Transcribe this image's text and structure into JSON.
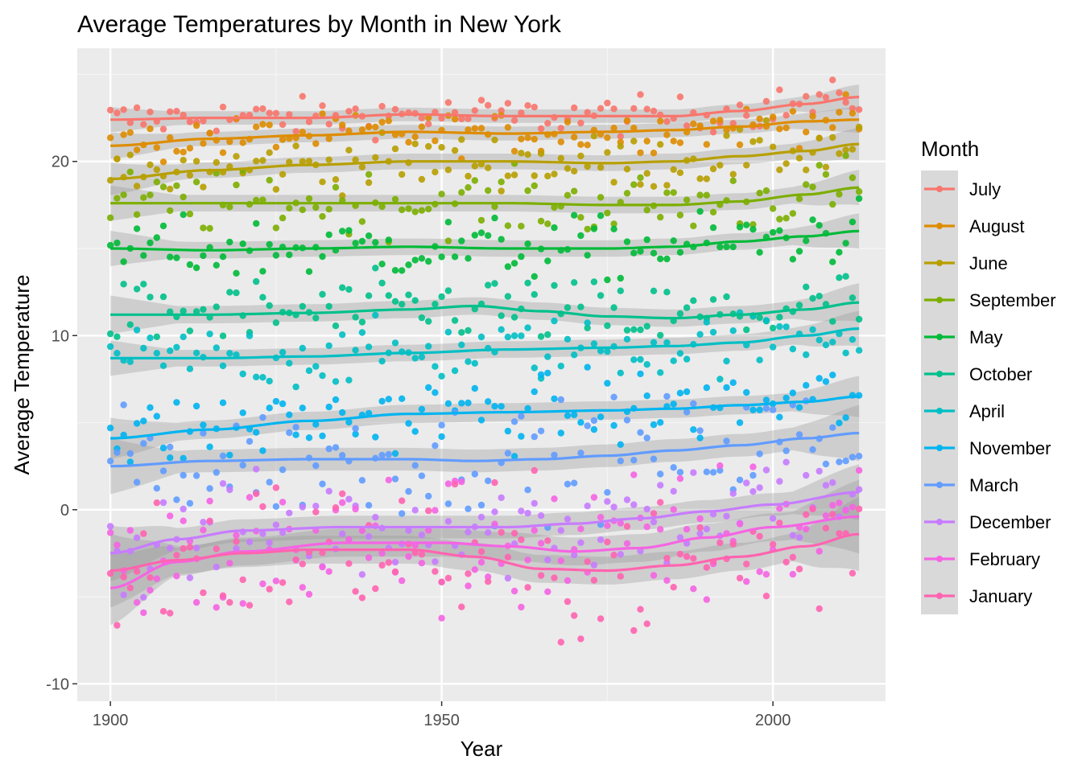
{
  "chart_data": {
    "type": "scatter",
    "title": "Average Temperatures by Month in New York",
    "xlabel": "Year",
    "ylabel": "Average Temperature",
    "xlim": [
      1895,
      2017
    ],
    "ylim": [
      -11,
      26.5
    ],
    "x_ticks": [
      1900,
      1950,
      2000
    ],
    "y_ticks": [
      -10,
      0,
      10,
      20
    ],
    "x_tick_labels": [
      "1900",
      "1950",
      "2000"
    ],
    "y_tick_labels": [
      "-10",
      "0",
      "10",
      "20"
    ],
    "x_range": [
      1900,
      2013
    ],
    "grid": true,
    "smoother": "loess with confidence band",
    "legend": {
      "title": "Month",
      "position": "right"
    },
    "series": [
      {
        "name": "July",
        "color": "#F8766D",
        "spread": 0.55,
        "trend": [
          [
            1900,
            22.4
          ],
          [
            1915,
            22.5
          ],
          [
            1930,
            22.5
          ],
          [
            1945,
            22.7
          ],
          [
            1960,
            22.6
          ],
          [
            1975,
            22.6
          ],
          [
            1985,
            22.6
          ],
          [
            1995,
            22.9
          ],
          [
            2005,
            23.3
          ],
          [
            2013,
            23.7
          ]
        ]
      },
      {
        "name": "August",
        "color": "#DE8C00",
        "spread": 0.6,
        "trend": [
          [
            1900,
            20.9
          ],
          [
            1915,
            21.3
          ],
          [
            1930,
            21.5
          ],
          [
            1945,
            21.7
          ],
          [
            1960,
            21.6
          ],
          [
            1975,
            21.7
          ],
          [
            1985,
            21.8
          ],
          [
            1995,
            22.0
          ],
          [
            2005,
            22.3
          ],
          [
            2013,
            22.4
          ]
        ]
      },
      {
        "name": "June",
        "color": "#B79F00",
        "spread": 0.8,
        "trend": [
          [
            1900,
            19.0
          ],
          [
            1915,
            19.5
          ],
          [
            1930,
            19.8
          ],
          [
            1945,
            20.0
          ],
          [
            1960,
            20.0
          ],
          [
            1975,
            19.9
          ],
          [
            1985,
            20.0
          ],
          [
            1995,
            20.3
          ],
          [
            2005,
            20.6
          ],
          [
            2013,
            21.0
          ]
        ]
      },
      {
        "name": "September",
        "color": "#7CAE00",
        "spread": 0.9,
        "trend": [
          [
            1900,
            17.6
          ],
          [
            1915,
            17.6
          ],
          [
            1930,
            17.6
          ],
          [
            1945,
            17.6
          ],
          [
            1960,
            17.6
          ],
          [
            1975,
            17.5
          ],
          [
            1985,
            17.5
          ],
          [
            1995,
            17.7
          ],
          [
            2005,
            18.1
          ],
          [
            2013,
            18.5
          ]
        ]
      },
      {
        "name": "May",
        "color": "#00BA38",
        "spread": 0.9,
        "trend": [
          [
            1900,
            15.0
          ],
          [
            1915,
            14.9
          ],
          [
            1930,
            15.0
          ],
          [
            1945,
            15.1
          ],
          [
            1960,
            15.0
          ],
          [
            1975,
            15.0
          ],
          [
            1985,
            15.1
          ],
          [
            1995,
            15.4
          ],
          [
            2005,
            15.7
          ],
          [
            2013,
            16.0
          ]
        ]
      },
      {
        "name": "October",
        "color": "#00C08B",
        "spread": 1.0,
        "trend": [
          [
            1900,
            11.2
          ],
          [
            1915,
            11.2
          ],
          [
            1930,
            11.3
          ],
          [
            1945,
            11.5
          ],
          [
            1955,
            11.7
          ],
          [
            1965,
            11.4
          ],
          [
            1975,
            11.1
          ],
          [
            1985,
            11.0
          ],
          [
            1995,
            11.2
          ],
          [
            2005,
            11.5
          ],
          [
            2013,
            11.9
          ]
        ]
      },
      {
        "name": "April",
        "color": "#00BFC4",
        "spread": 0.9,
        "trend": [
          [
            1900,
            8.7
          ],
          [
            1915,
            8.7
          ],
          [
            1930,
            8.8
          ],
          [
            1945,
            9.0
          ],
          [
            1960,
            9.2
          ],
          [
            1975,
            9.3
          ],
          [
            1985,
            9.4
          ],
          [
            1995,
            9.6
          ],
          [
            2005,
            10.0
          ],
          [
            2013,
            10.4
          ]
        ]
      },
      {
        "name": "November",
        "color": "#00B4F0",
        "spread": 1.1,
        "trend": [
          [
            1900,
            4.1
          ],
          [
            1915,
            4.6
          ],
          [
            1930,
            5.1
          ],
          [
            1945,
            5.5
          ],
          [
            1960,
            5.6
          ],
          [
            1975,
            5.7
          ],
          [
            1985,
            5.8
          ],
          [
            1995,
            6.0
          ],
          [
            2005,
            6.2
          ],
          [
            2013,
            6.5
          ]
        ]
      },
      {
        "name": "March",
        "color": "#619CFF",
        "spread": 1.6,
        "trend": [
          [
            1900,
            2.5
          ],
          [
            1915,
            2.8
          ],
          [
            1930,
            2.9
          ],
          [
            1945,
            2.9
          ],
          [
            1955,
            2.8
          ],
          [
            1965,
            2.9
          ],
          [
            1975,
            3.1
          ],
          [
            1985,
            3.4
          ],
          [
            1995,
            3.7
          ],
          [
            2005,
            4.1
          ],
          [
            2013,
            4.4
          ]
        ]
      },
      {
        "name": "December",
        "color": "#C77CFF",
        "spread": 1.6,
        "trend": [
          [
            1900,
            -2.5
          ],
          [
            1910,
            -1.7
          ],
          [
            1920,
            -1.2
          ],
          [
            1935,
            -1.0
          ],
          [
            1950,
            -1.0
          ],
          [
            1960,
            -1.0
          ],
          [
            1970,
            -0.8
          ],
          [
            1980,
            -0.5
          ],
          [
            1990,
            -0.1
          ],
          [
            2000,
            0.3
          ],
          [
            2013,
            1.0
          ]
        ]
      },
      {
        "name": "February",
        "color": "#F564E3",
        "spread": 2.2,
        "trend": [
          [
            1900,
            -4.5
          ],
          [
            1910,
            -3.0
          ],
          [
            1920,
            -2.4
          ],
          [
            1935,
            -1.9
          ],
          [
            1950,
            -1.9
          ],
          [
            1960,
            -2.1
          ],
          [
            1970,
            -2.4
          ],
          [
            1980,
            -2.2
          ],
          [
            1990,
            -1.6
          ],
          [
            2000,
            -1.0
          ],
          [
            2013,
            -0.4
          ]
        ]
      },
      {
        "name": "January",
        "color": "#FF64B0",
        "spread": 2.2,
        "trend": [
          [
            1900,
            -3.5
          ],
          [
            1910,
            -2.9
          ],
          [
            1920,
            -2.5
          ],
          [
            1930,
            -2.3
          ],
          [
            1945,
            -2.3
          ],
          [
            1955,
            -2.7
          ],
          [
            1965,
            -3.4
          ],
          [
            1975,
            -3.5
          ],
          [
            1985,
            -3.2
          ],
          [
            1995,
            -2.7
          ],
          [
            2005,
            -2.1
          ],
          [
            2013,
            -1.4
          ]
        ]
      }
    ]
  }
}
